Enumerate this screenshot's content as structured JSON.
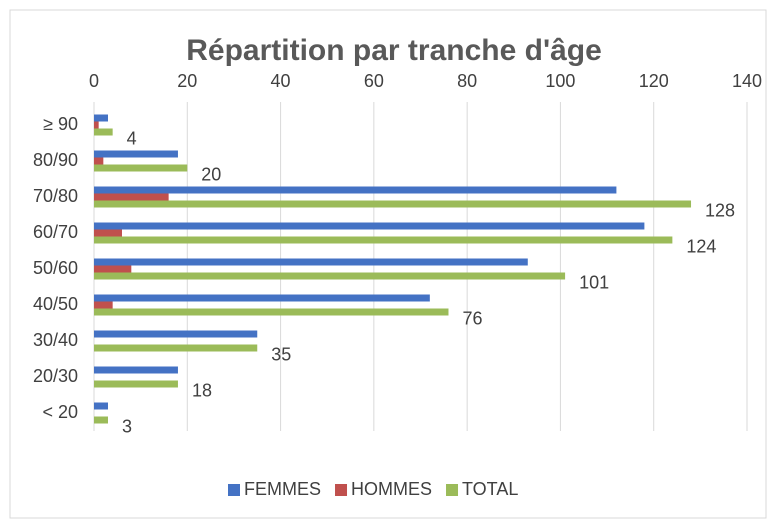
{
  "chart_data": {
    "type": "bar",
    "orientation": "horizontal",
    "title": "Répartition par tranche d'âge",
    "categories": [
      "≥ 90",
      "80/90",
      "70/80",
      "60/70",
      "50/60",
      "40/50",
      "30/40",
      "20/30",
      "< 20"
    ],
    "series": [
      {
        "name": "FEMMES",
        "color": "#4472c4",
        "values": [
          3,
          18,
          112,
          118,
          93,
          72,
          35,
          18,
          3
        ]
      },
      {
        "name": "HOMMES",
        "color": "#c0504d",
        "values": [
          1,
          2,
          16,
          6,
          8,
          4,
          0,
          0,
          0
        ]
      },
      {
        "name": "TOTAL",
        "color": "#9bbb59",
        "values": [
          4,
          20,
          128,
          124,
          101,
          76,
          35,
          18,
          3
        ],
        "data_labels": true
      }
    ],
    "xlim": [
      0,
      140
    ],
    "xticks": [
      0,
      20,
      40,
      60,
      80,
      100,
      120,
      140
    ],
    "grid": true,
    "legend": "bottom"
  }
}
